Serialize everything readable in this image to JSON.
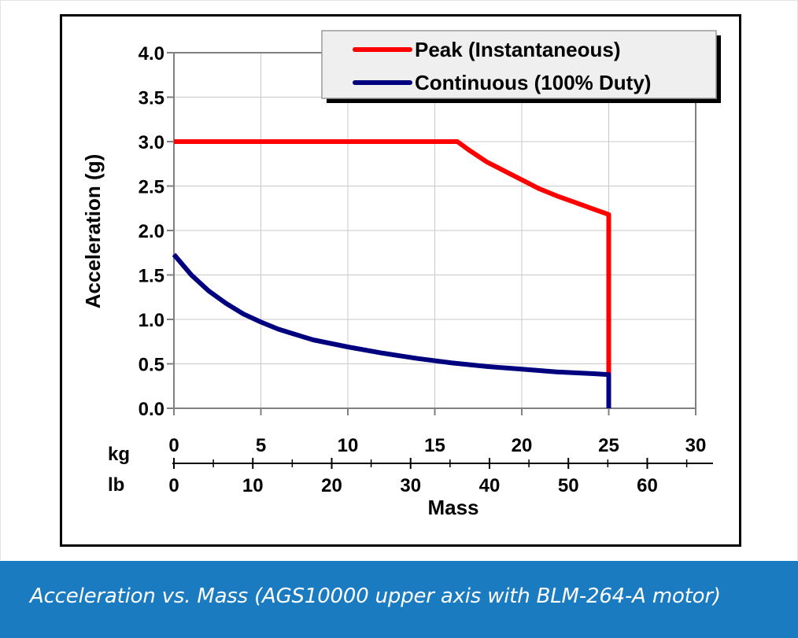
{
  "caption": "Acceleration vs. Mass (AGS10000 upper axis with BLM-264-A motor)",
  "chart_data": {
    "type": "line",
    "title": "",
    "xlabel": "Mass",
    "ylabel": "Acceleration (g)",
    "xlim": [
      0,
      30
    ],
    "ylim": [
      0,
      4.0
    ],
    "grid": true,
    "legend_position": "top-right",
    "x_ticks": [
      0,
      5,
      10,
      15,
      20,
      25,
      30
    ],
    "y_ticks": [
      "0.0",
      "0.5",
      "1.0",
      "1.5",
      "2.0",
      "2.5",
      "3.0",
      "3.5",
      "4.0"
    ],
    "secondary_x_axis": {
      "upper_unit": "kg",
      "lower_unit": "lb",
      "lb_ticks": [
        0,
        10,
        20,
        30,
        40,
        50,
        60
      ]
    },
    "series": [
      {
        "name": "Peak (Instantaneous)",
        "color": "#ff0000",
        "x": [
          0,
          16.3,
          17,
          18,
          19,
          20,
          21,
          22,
          23,
          24,
          25,
          25
        ],
        "y": [
          3.0,
          3.0,
          2.9,
          2.77,
          2.67,
          2.57,
          2.47,
          2.39,
          2.32,
          2.25,
          2.18,
          0.0
        ]
      },
      {
        "name": "Continuous (100% Duty)",
        "color": "#00007f",
        "x": [
          0,
          1,
          2,
          3,
          4,
          5,
          6,
          7,
          8,
          9,
          10,
          12,
          14,
          16,
          18,
          20,
          22,
          24,
          25,
          25
        ],
        "y": [
          1.73,
          1.5,
          1.32,
          1.18,
          1.06,
          0.97,
          0.89,
          0.83,
          0.77,
          0.73,
          0.69,
          0.62,
          0.56,
          0.51,
          0.47,
          0.44,
          0.41,
          0.39,
          0.38,
          0.0
        ]
      }
    ]
  }
}
